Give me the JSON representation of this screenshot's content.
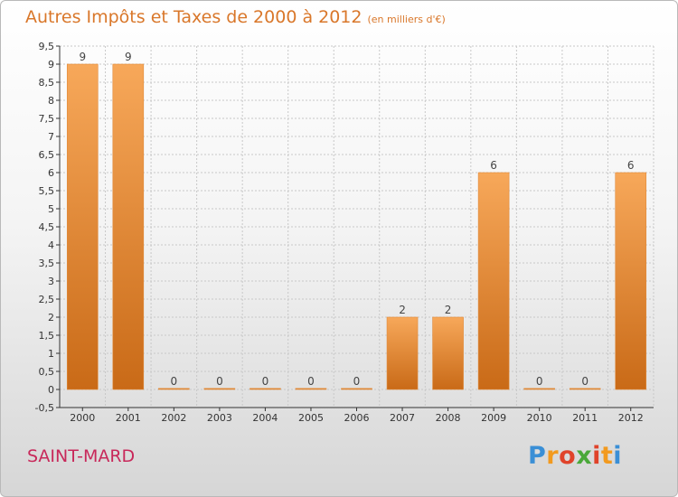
{
  "header": {
    "title": "Autres Impôts et Taxes de 2000 à 2012",
    "subtitle": "(en milliers d'€)"
  },
  "footer": {
    "commune": "SAINT-MARD",
    "logo_letters": [
      "P",
      "r",
      "o",
      "x",
      "i",
      "t",
      "i"
    ],
    "logo_colors": [
      "#3a8fd6",
      "#f29a1f",
      "#e0432a",
      "#4aa83a",
      "#e0432a",
      "#f29a1f",
      "#3a8fd6"
    ]
  },
  "colors": {
    "bar_top": "#f7a85a",
    "bar_bottom": "#c96a17",
    "grid": "#c8c8c8",
    "title": "#d9772a",
    "commune": "#c8285a"
  },
  "chart_data": {
    "type": "bar",
    "categories": [
      "2000",
      "2001",
      "2002",
      "2003",
      "2004",
      "2005",
      "2006",
      "2007",
      "2008",
      "2009",
      "2010",
      "2011",
      "2012"
    ],
    "values": [
      9,
      9,
      0,
      0,
      0,
      0,
      0,
      2,
      2,
      6,
      0,
      0,
      6
    ],
    "value_labels": [
      "9",
      "9",
      "0",
      "0",
      "0",
      "0",
      "0",
      "2",
      "2",
      "6",
      "0",
      "0",
      "6"
    ],
    "title": "Autres Impôts et Taxes de 2000 à 2012",
    "xlabel": "",
    "ylabel": "",
    "ylim": [
      -0.5,
      9.5
    ],
    "yticks": [
      "-0,5",
      "0",
      "0,5",
      "1",
      "1,5",
      "2",
      "2,5",
      "3",
      "3,5",
      "4",
      "4,5",
      "5",
      "5,5",
      "6",
      "6,5",
      "7",
      "7,5",
      "8",
      "8,5",
      "9",
      "9,5"
    ],
    "ytick_values": [
      -0.5,
      0,
      0.5,
      1,
      1.5,
      2,
      2.5,
      3,
      3.5,
      4,
      4.5,
      5,
      5.5,
      6,
      6.5,
      7,
      7.5,
      8,
      8.5,
      9,
      9.5
    ],
    "grid": true,
    "legend": "none"
  }
}
